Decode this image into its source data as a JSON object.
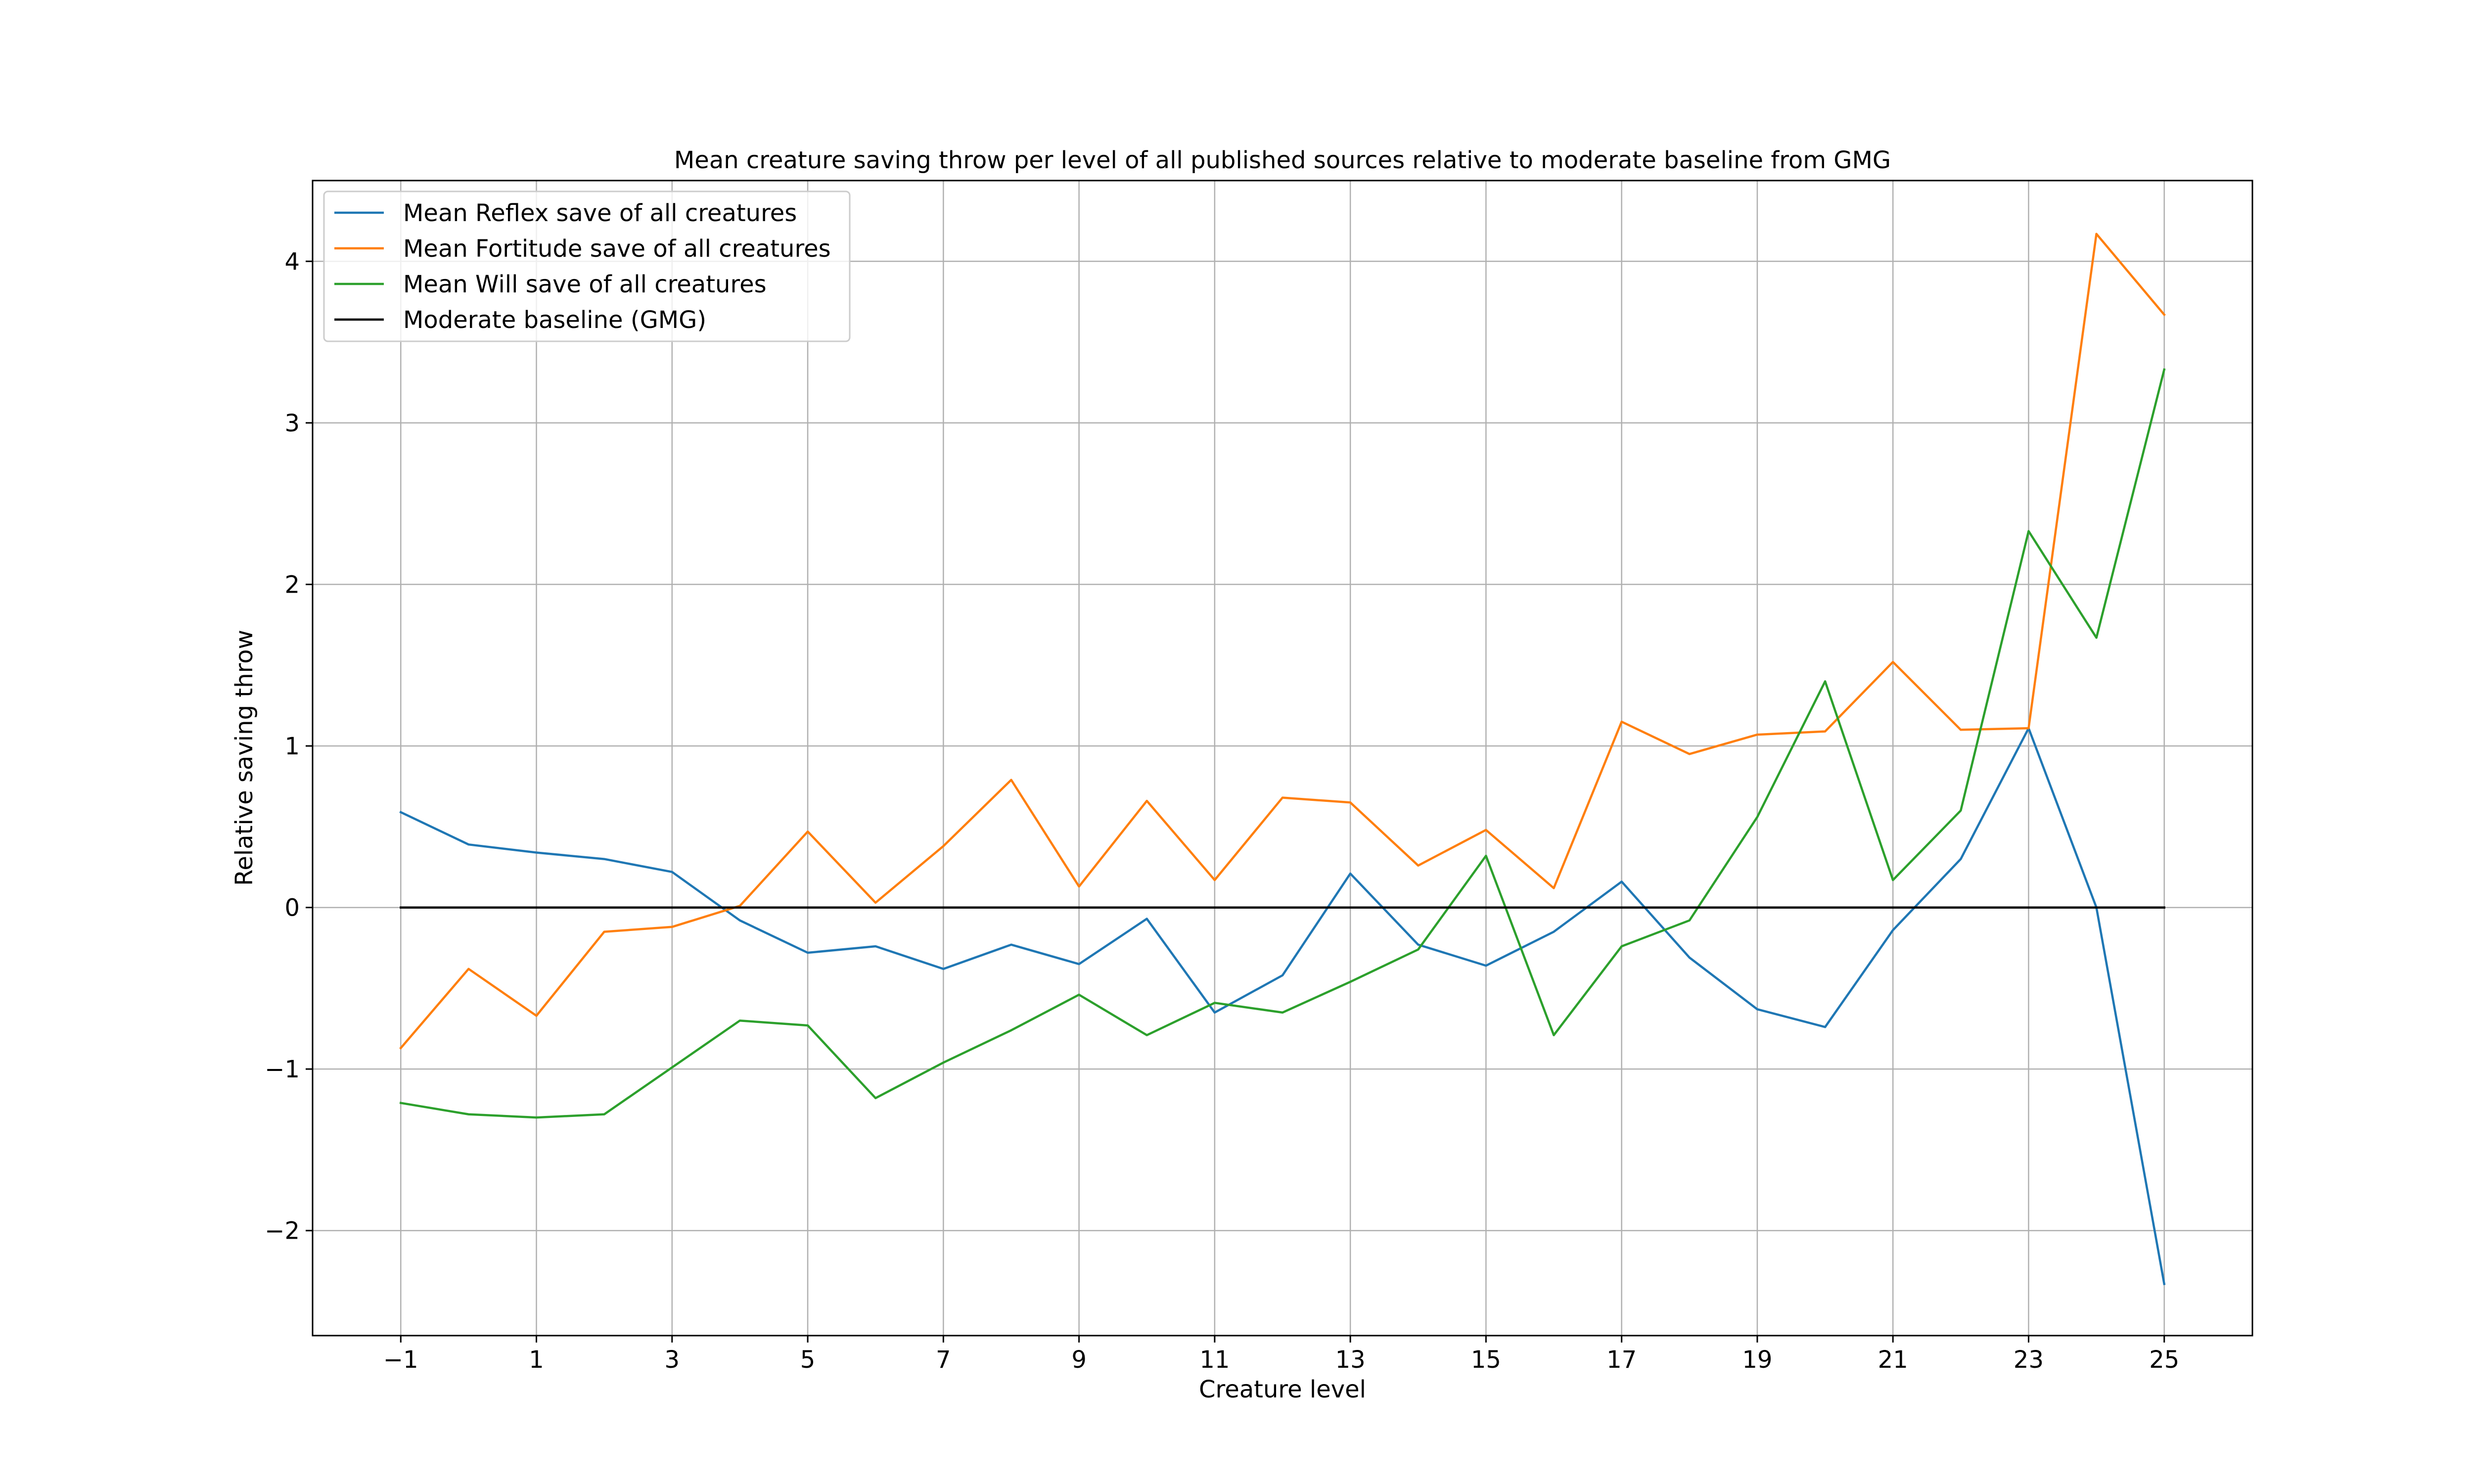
{
  "chart_data": {
    "type": "line",
    "title": "Mean creature saving throw per level of all published sources relative to moderate baseline from GMG",
    "xlabel": "Creature level",
    "ylabel": "Relative saving throw",
    "xlim": [
      -2.3,
      26.3
    ],
    "ylim": [
      -2.65,
      4.5
    ],
    "xticks": [
      -1,
      1,
      3,
      5,
      7,
      9,
      11,
      13,
      15,
      17,
      19,
      21,
      23,
      25
    ],
    "xtick_labels": [
      "−1",
      "1",
      "3",
      "5",
      "7",
      "9",
      "11",
      "13",
      "15",
      "17",
      "19",
      "21",
      "23",
      "25"
    ],
    "yticks": [
      -2,
      -1,
      0,
      1,
      2,
      3,
      4
    ],
    "ytick_labels": [
      "−2",
      "−1",
      "0",
      "1",
      "2",
      "3",
      "4"
    ],
    "grid": true,
    "legend_position": "top-left",
    "x": [
      -1,
      0,
      1,
      2,
      3,
      4,
      5,
      6,
      7,
      8,
      9,
      10,
      11,
      12,
      13,
      14,
      15,
      16,
      17,
      18,
      19,
      20,
      21,
      22,
      23,
      24,
      25
    ],
    "series": [
      {
        "name": "Mean Reflex save of all creatures",
        "color": "#1f77b4",
        "values": [
          0.59,
          0.39,
          0.34,
          0.3,
          0.22,
          -0.08,
          -0.28,
          -0.24,
          -0.38,
          -0.23,
          -0.35,
          -0.07,
          -0.65,
          -0.42,
          0.21,
          -0.23,
          -0.36,
          -0.15,
          0.16,
          -0.31,
          -0.63,
          -0.74,
          -0.14,
          0.3,
          1.11,
          0.0,
          -2.33
        ]
      },
      {
        "name": "Mean Fortitude save of all creatures",
        "color": "#ff7f0e",
        "values": [
          -0.87,
          -0.38,
          -0.67,
          -0.15,
          -0.12,
          0.01,
          0.47,
          0.03,
          0.38,
          0.79,
          0.13,
          0.66,
          0.17,
          0.68,
          0.65,
          0.26,
          0.48,
          0.12,
          1.15,
          0.95,
          1.07,
          1.09,
          1.52,
          1.1,
          1.11,
          4.17,
          3.67
        ]
      },
      {
        "name": "Mean Will save of all creatures",
        "color": "#2ca02c",
        "values": [
          -1.21,
          -1.28,
          -1.3,
          -1.28,
          -0.99,
          -0.7,
          -0.73,
          -1.18,
          -0.96,
          -0.76,
          -0.54,
          -0.79,
          -0.59,
          -0.65,
          -0.46,
          -0.26,
          0.32,
          -0.79,
          -0.24,
          -0.08,
          0.56,
          1.4,
          0.17,
          0.6,
          2.33,
          1.67,
          3.33
        ]
      },
      {
        "name": "Moderate baseline (GMG)",
        "color": "#000000",
        "values": [
          0,
          0,
          0,
          0,
          0,
          0,
          0,
          0,
          0,
          0,
          0,
          0,
          0,
          0,
          0,
          0,
          0,
          0,
          0,
          0,
          0,
          0,
          0,
          0,
          0,
          0,
          0
        ]
      }
    ]
  }
}
